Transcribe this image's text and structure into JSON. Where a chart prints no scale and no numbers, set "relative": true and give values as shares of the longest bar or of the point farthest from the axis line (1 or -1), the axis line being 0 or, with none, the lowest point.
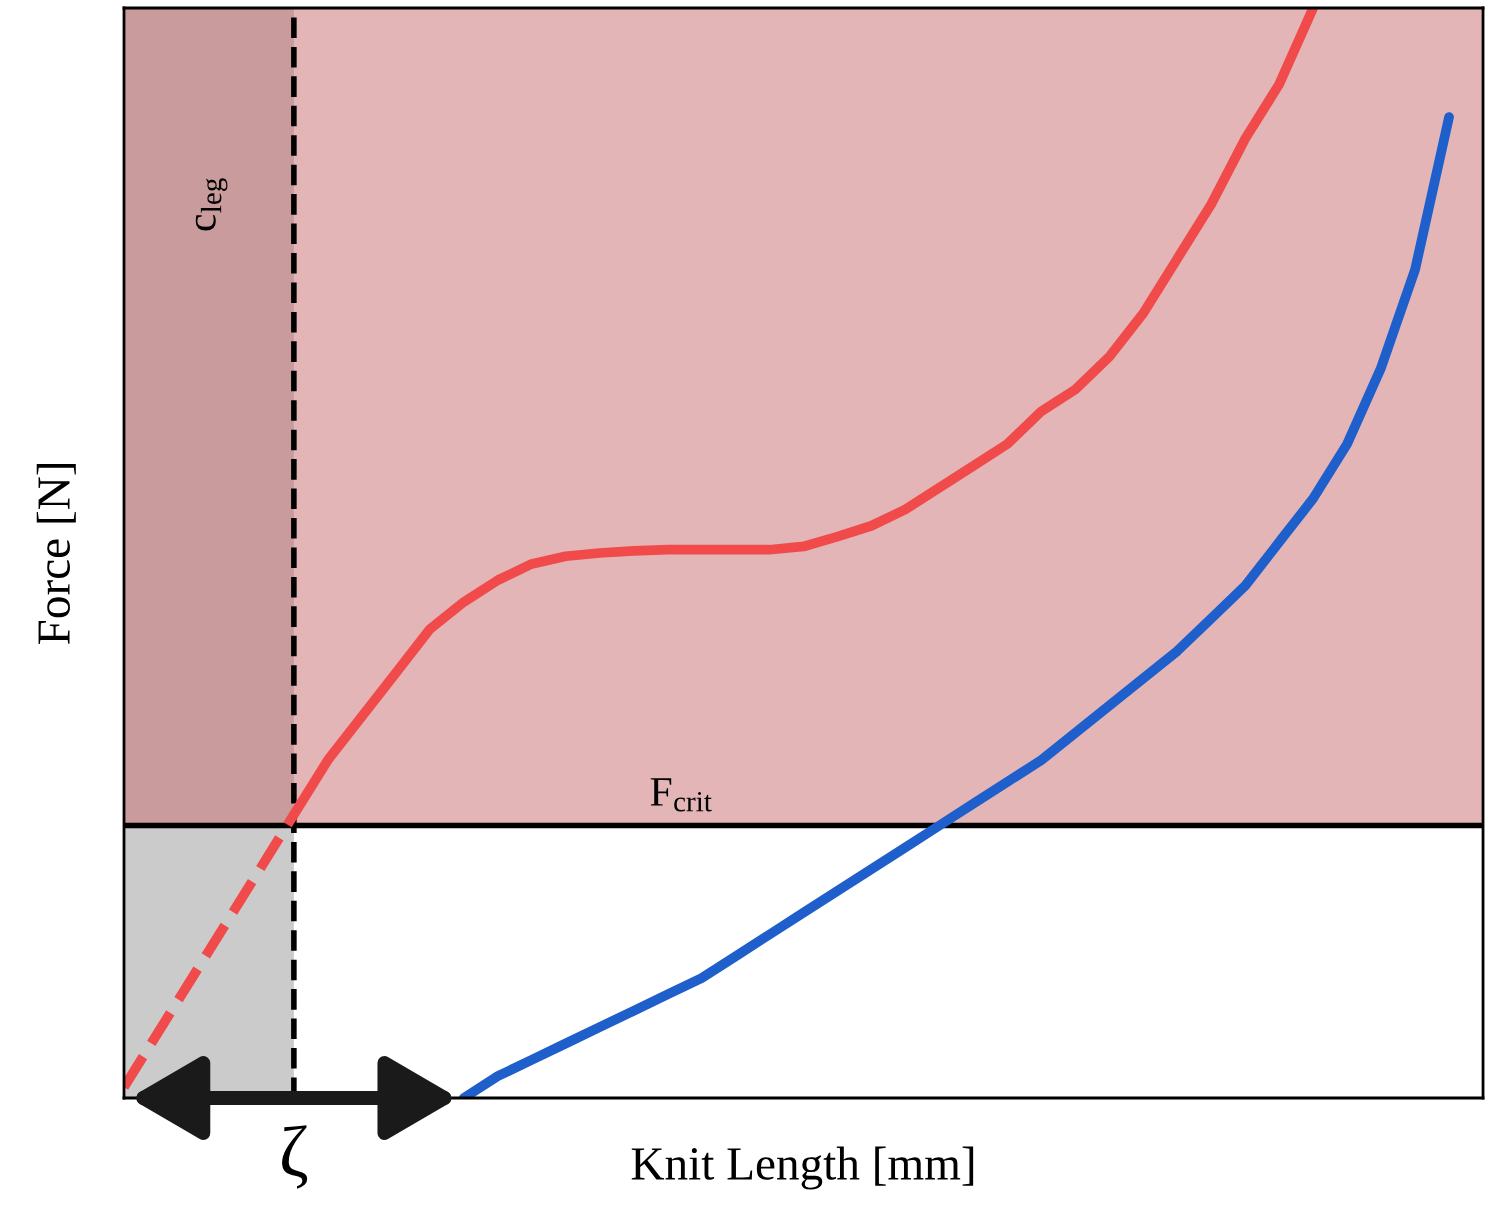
{
  "chart_data": {
    "type": "line",
    "relative": true,
    "xlabel": "Knit Length [mm]",
    "ylabel": "Force [N]",
    "line_style": "solid",
    "categories": [
      null,
      null,
      null,
      null,
      null,
      null,
      null,
      null,
      null,
      null,
      null,
      null,
      null,
      null,
      null,
      null,
      null,
      null,
      null,
      null,
      null,
      null,
      null,
      null,
      null,
      null,
      null,
      null,
      null,
      null,
      null,
      null,
      null,
      null,
      null,
      null,
      null,
      null,
      null,
      null,
      null
    ],
    "series": [
      {
        "color": "#f04a4a",
        "line_style": "dashed",
        "values": [
          0.01,
          0.06,
          0.11,
          0.16,
          0.21,
          0.26,
          null,
          null,
          null,
          null,
          null,
          null,
          null,
          null,
          null,
          null,
          null,
          null,
          null,
          null,
          null,
          null,
          null,
          null,
          null,
          null,
          null,
          null,
          null,
          null,
          null,
          null,
          null,
          null,
          null,
          null,
          null,
          null,
          null,
          null,
          null
        ]
      },
      {
        "color": "#f04a4a",
        "values": [
          null,
          null,
          null,
          null,
          null,
          0.26,
          0.31,
          0.35,
          0.39,
          0.43,
          0.455,
          0.475,
          0.49,
          0.497,
          0.5,
          0.502,
          0.503,
          0.503,
          0.503,
          0.503,
          0.506,
          0.515,
          0.525,
          0.54,
          0.56,
          0.58,
          0.6,
          0.63,
          0.65,
          0.68,
          0.72,
          0.77,
          0.82,
          0.88,
          0.93,
          1.0,
          null,
          null,
          null,
          null,
          null
        ]
      },
      {
        "color": "#1f5fcc",
        "values": [
          null,
          null,
          null,
          null,
          null,
          null,
          null,
          null,
          null,
          null,
          0.0,
          0.02,
          0.035,
          0.05,
          0.065,
          0.08,
          0.095,
          0.11,
          0.13,
          0.15,
          0.17,
          0.19,
          0.21,
          0.23,
          0.25,
          0.27,
          0.29,
          0.31,
          0.335,
          0.36,
          0.385,
          0.41,
          0.44,
          0.47,
          0.51,
          0.55,
          0.6,
          0.67,
          0.76,
          0.9,
          null
        ]
      }
    ],
    "bands": [
      {
        "axis": "y",
        "from": 0.25,
        "to": 1,
        "color": "#c76b70"
      }
    ],
    "ref_lines": [
      {
        "axis": "y",
        "value": 0.25,
        "label": "F$_{crit}$",
        "color": "#000000",
        "line_style": "solid"
      }
    ],
    "annotations": [
      "c$_{leg}$",
      "ζ"
    ]
  }
}
